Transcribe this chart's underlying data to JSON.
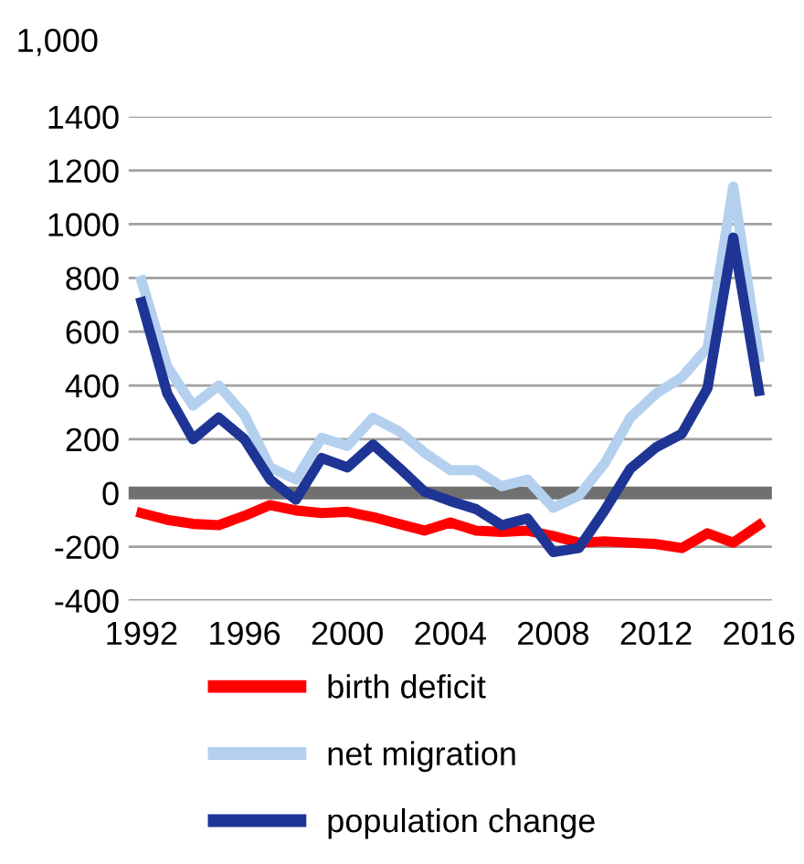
{
  "chart_data": {
    "type": "line",
    "ylabel": "1,000",
    "x": [
      1992,
      1993,
      1994,
      1995,
      1996,
      1997,
      1998,
      1999,
      2000,
      2001,
      2002,
      2003,
      2004,
      2005,
      2006,
      2007,
      2008,
      2009,
      2010,
      2011,
      2012,
      2013,
      2014,
      2015,
      2016
    ],
    "series": [
      {
        "name": "birth deficit",
        "color": "#ff0000",
        "values": [
          -75,
          -100,
          -115,
          -120,
          -85,
          -45,
          -65,
          -75,
          -70,
          -90,
          -115,
          -140,
          -110,
          -140,
          -145,
          -140,
          -160,
          -185,
          -180,
          -185,
          -190,
          -205,
          -150,
          -185,
          -120
        ]
      },
      {
        "name": "net migration",
        "color": "#b4d0ee",
        "values": [
          790,
          470,
          325,
          400,
          290,
          95,
          50,
          205,
          175,
          280,
          230,
          150,
          85,
          85,
          25,
          50,
          -55,
          -10,
          110,
          280,
          370,
          430,
          540,
          1140,
          505
        ]
      },
      {
        "name": "population change",
        "color": "#1f3595",
        "values": [
          710,
          370,
          200,
          280,
          200,
          50,
          -25,
          130,
          95,
          180,
          95,
          5,
          -30,
          -60,
          -120,
          -95,
          -220,
          -205,
          -65,
          90,
          170,
          220,
          390,
          950,
          380
        ]
      }
    ],
    "xlim": [
      1991.5,
      2016.5
    ],
    "xticks": [
      1992,
      1996,
      2000,
      2004,
      2008,
      2012,
      2016
    ],
    "ylim": [
      -400,
      1400
    ],
    "yticks": [
      -400,
      -200,
      0,
      200,
      400,
      600,
      800,
      1000,
      1200,
      1400
    ],
    "ref_lines": [
      {
        "axis": "y",
        "value": 0,
        "color": "#707070"
      }
    ],
    "grid": "y",
    "legend": "bottom",
    "marker": "none",
    "line_style": "solid"
  }
}
